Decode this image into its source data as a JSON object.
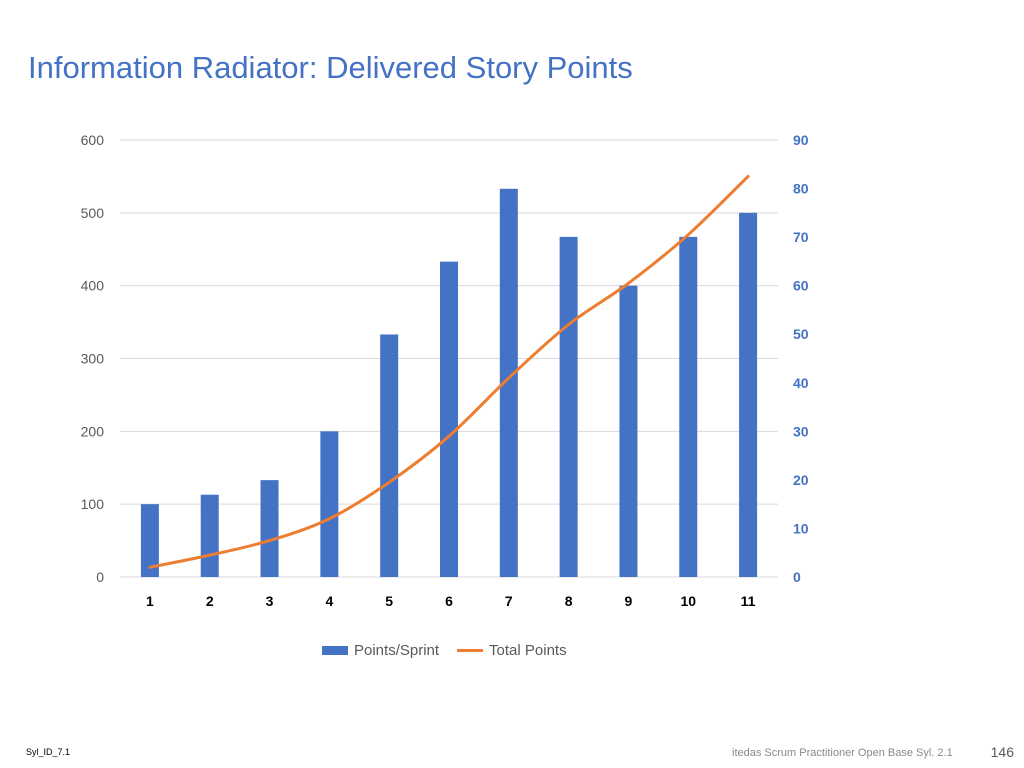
{
  "slide": {
    "title": "Information Radiator: Delivered Story Points",
    "footer_left": "Syl_ID_7.1",
    "footer_right": "itedas Scrum Practitioner Open Base Syl. 2.1",
    "page_number": "146"
  },
  "chart_data": {
    "type": "bar",
    "categories": [
      "1",
      "2",
      "3",
      "4",
      "5",
      "6",
      "7",
      "8",
      "9",
      "10",
      "11"
    ],
    "series": [
      {
        "name": "Points/Sprint",
        "type": "bar",
        "axis": "left",
        "color": "#4472C4",
        "values": [
          100,
          113,
          133,
          200,
          333,
          433,
          533,
          467,
          400,
          467,
          500
        ]
      },
      {
        "name": "Total Points",
        "type": "line",
        "axis": "right",
        "color": "#ED7D31",
        "values": [
          2,
          4.5,
          7.5,
          12,
          19.5,
          29,
          41,
          52,
          60.5,
          70.5,
          82.5
        ]
      }
    ],
    "y_left": {
      "min": 0,
      "max": 600,
      "ticks": [
        "0",
        "100",
        "200",
        "300",
        "400",
        "500",
        "600"
      ]
    },
    "y_right": {
      "min": 0,
      "max": 90,
      "ticks": [
        "0",
        "10",
        "20",
        "30",
        "40",
        "50",
        "60",
        "70",
        "80",
        "90"
      ]
    },
    "grid": true,
    "legend_position": "bottom"
  }
}
